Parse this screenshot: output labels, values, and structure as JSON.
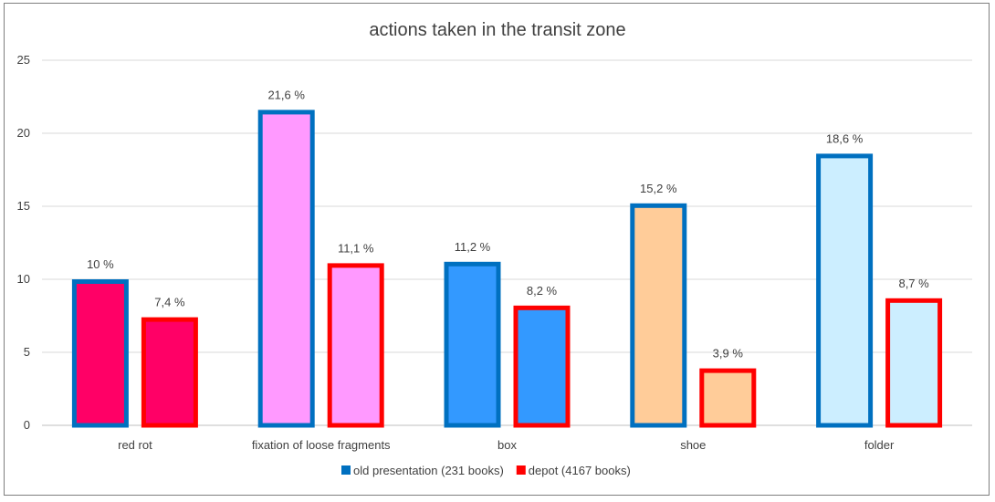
{
  "chart_data": {
    "type": "bar",
    "title": "actions taken in the transit zone",
    "xlabel": "",
    "ylabel": "",
    "ylim": [
      0,
      25
    ],
    "yticks": [
      0,
      5,
      10,
      15,
      20,
      25
    ],
    "grid": true,
    "legend_position": "bottom",
    "categories": [
      "red rot",
      "fixation of loose fragments",
      "box",
      "shoe",
      "folder"
    ],
    "category_fill_colors": [
      "#ff0066",
      "#ff99ff",
      "#3399ff",
      "#ffcc99",
      "#cceeff"
    ],
    "series": [
      {
        "name": "old presentation (231 books)",
        "border_color": "#0070c0",
        "values": [
          10,
          21.6,
          11.2,
          15.2,
          18.6
        ],
        "labels": [
          "10 %",
          "21,6 %",
          "11,2 %",
          "15,2 %",
          "18,6 %"
        ]
      },
      {
        "name": "depot (4167 books)",
        "border_color": "#ff0000",
        "values": [
          7.4,
          11.1,
          8.2,
          3.9,
          8.7
        ],
        "labels": [
          "7,4 %",
          "11,1 %",
          "8,2 %",
          "3,9 %",
          "8,7 %"
        ]
      }
    ]
  }
}
